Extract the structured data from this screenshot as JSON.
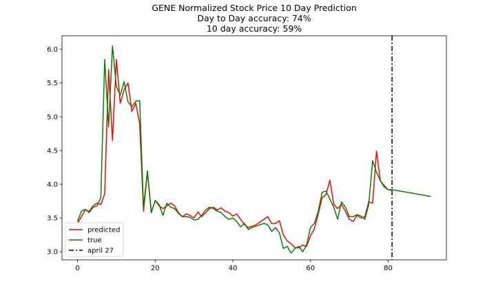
{
  "chart_data": {
    "type": "line",
    "title": "GENE Normalized Stock Price 10 Day Prediction",
    "subtitle_lines": [
      "Day to Day accuracy: 74%",
      "10 day accuracy: 59%"
    ],
    "xlabel": "",
    "ylabel": "",
    "xlim": [
      -4,
      95
    ],
    "ylim": [
      2.88,
      6.2
    ],
    "x_ticks": [
      0,
      20,
      40,
      60,
      80
    ],
    "y_ticks": [
      3.0,
      3.5,
      4.0,
      4.5,
      5.0,
      5.5,
      6.0
    ],
    "y_tick_labels": [
      "3.0",
      "3.5",
      "4.0",
      "4.5",
      "5.0",
      "5.5",
      "6.0"
    ],
    "grid": false,
    "legend_position": "bottom-left",
    "series": [
      {
        "name": "predicted",
        "color": "#ff0000",
        "x": [
          0,
          1,
          2,
          3,
          4,
          5,
          6,
          7,
          8,
          9,
          10,
          11,
          12,
          13,
          14,
          15,
          16,
          17,
          18,
          19,
          20,
          21,
          22,
          23,
          24,
          25,
          26,
          27,
          28,
          29,
          30,
          31,
          32,
          33,
          34,
          35,
          36,
          37,
          38,
          39,
          40,
          41,
          42,
          43,
          44,
          45,
          46,
          47,
          48,
          49,
          50,
          51,
          52,
          53,
          54,
          55,
          56,
          57,
          58,
          59,
          60,
          61,
          62,
          63,
          64,
          65,
          66,
          67,
          68,
          69,
          70,
          71,
          72,
          73,
          74,
          75,
          76,
          77,
          78,
          79,
          80,
          81
        ],
        "values": [
          3.42,
          3.52,
          3.62,
          3.6,
          3.68,
          3.72,
          3.7,
          3.86,
          5.7,
          4.65,
          5.85,
          5.2,
          5.4,
          5.5,
          5.08,
          5.2,
          4.9,
          3.6,
          4.18,
          3.58,
          3.76,
          3.68,
          3.64,
          3.68,
          3.72,
          3.68,
          3.58,
          3.52,
          3.56,
          3.54,
          3.5,
          3.59,
          3.52,
          3.58,
          3.64,
          3.66,
          3.62,
          3.65,
          3.6,
          3.58,
          3.53,
          3.56,
          3.48,
          3.4,
          3.36,
          3.38,
          3.4,
          3.44,
          3.48,
          3.52,
          3.42,
          3.42,
          3.46,
          3.25,
          3.16,
          3.12,
          3.06,
          3.06,
          3.1,
          3.08,
          3.24,
          3.34,
          3.56,
          3.8,
          3.85,
          4.06,
          3.7,
          3.64,
          3.7,
          3.6,
          3.48,
          3.45,
          3.54,
          3.5,
          3.52,
          3.74,
          3.72,
          4.49,
          4.05,
          3.98,
          3.92,
          3.91
        ]
      },
      {
        "name": "true",
        "color": "#008000",
        "x": [
          0,
          1,
          2,
          3,
          4,
          5,
          6,
          7,
          8,
          9,
          10,
          11,
          12,
          13,
          14,
          15,
          16,
          17,
          18,
          19,
          20,
          21,
          22,
          23,
          24,
          25,
          26,
          27,
          28,
          29,
          30,
          31,
          32,
          33,
          34,
          35,
          36,
          37,
          38,
          39,
          40,
          41,
          42,
          43,
          44,
          45,
          46,
          47,
          48,
          49,
          50,
          51,
          52,
          53,
          54,
          55,
          56,
          57,
          58,
          59,
          60,
          61,
          62,
          63,
          64,
          65,
          66,
          67,
          68,
          69,
          70,
          71,
          72,
          73,
          74,
          75,
          76,
          77,
          78,
          79,
          80,
          81,
          82,
          83,
          84,
          85,
          86,
          87,
          88,
          89,
          90,
          91
        ],
        "values": [
          3.45,
          3.6,
          3.63,
          3.58,
          3.66,
          3.68,
          3.8,
          5.85,
          4.85,
          6.05,
          5.45,
          5.32,
          5.52,
          5.22,
          5.15,
          5.23,
          5.24,
          3.66,
          4.2,
          3.58,
          3.76,
          3.7,
          3.54,
          3.72,
          3.66,
          3.64,
          3.57,
          3.52,
          3.52,
          3.51,
          3.47,
          3.48,
          3.54,
          3.62,
          3.66,
          3.64,
          3.6,
          3.58,
          3.52,
          3.48,
          3.5,
          3.45,
          3.37,
          3.42,
          3.33,
          3.36,
          3.38,
          3.4,
          3.42,
          3.4,
          3.3,
          3.36,
          3.28,
          3.05,
          3.08,
          2.98,
          3.05,
          3.08,
          3.0,
          3.1,
          3.36,
          3.42,
          3.6,
          3.88,
          3.9,
          3.78,
          3.66,
          3.48,
          3.74,
          3.66,
          3.52,
          3.52,
          3.55,
          3.53,
          3.48,
          3.7,
          4.35,
          4.18,
          4.05,
          3.96,
          3.92,
          3.92,
          3.91,
          3.9,
          3.89,
          3.88,
          3.87,
          3.86,
          3.85,
          3.84,
          3.83,
          3.82
        ]
      }
    ],
    "vertical_line": {
      "name": "april 27",
      "x": 81,
      "color": "#000000",
      "style": "dash-dot"
    }
  }
}
